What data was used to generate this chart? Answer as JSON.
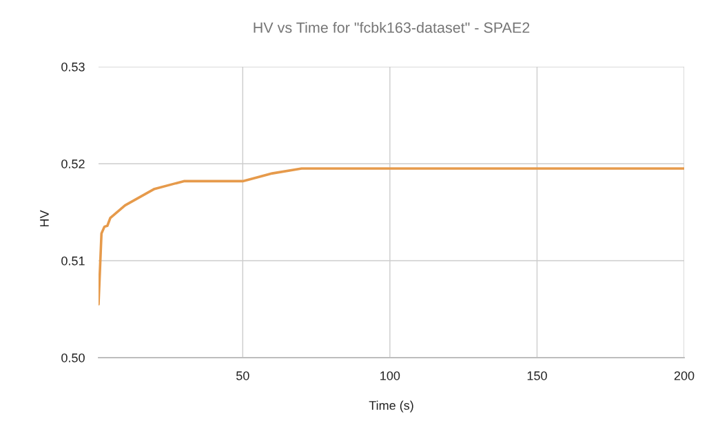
{
  "chart_data": {
    "type": "line",
    "title": "HV vs Time for \"fcbk163-dataset\" - SPAE2",
    "xlabel": "Time (s)",
    "ylabel": "HV",
    "x": [
      1,
      2,
      3,
      4,
      5,
      10,
      20,
      30,
      50,
      60,
      70,
      200
    ],
    "values": [
      0.5055,
      0.5128,
      0.5135,
      0.5136,
      0.5144,
      0.5157,
      0.5174,
      0.5182,
      0.5182,
      0.519,
      0.5195,
      0.5195
    ],
    "color": "#e69a4b",
    "line_style": "solid",
    "xlim": [
      1,
      200
    ],
    "xticks": [
      50,
      100,
      150,
      200
    ],
    "ylim": [
      0.5,
      0.53
    ],
    "yticks": [
      {
        "value": 0.5,
        "label": "0.50"
      },
      0.51,
      0.52,
      0.53
    ],
    "grid": true
  }
}
